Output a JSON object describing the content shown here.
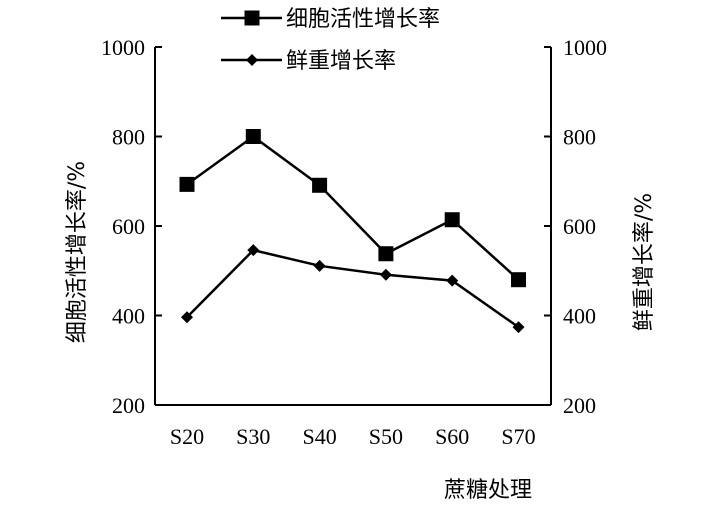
{
  "chart_data": {
    "type": "line",
    "categories": [
      "S20",
      "S30",
      "S40",
      "S50",
      "S60",
      "S70"
    ],
    "series": [
      {
        "name": "细胞活性增长率",
        "marker": "square",
        "values": [
          693,
          800,
          691,
          538,
          614,
          480
        ]
      },
      {
        "name": "鲜重增长率",
        "marker": "diamond",
        "values": [
          396,
          546,
          511,
          491,
          478,
          374
        ]
      }
    ],
    "xlabel": "蔗糖处理",
    "ylabel_left": "细胞活性增长率/%",
    "ylabel_right": "鲜重增长率/%",
    "ylim": [
      200,
      1000
    ],
    "yticks": [
      200,
      400,
      600,
      800,
      1000
    ],
    "grid": false,
    "legend_position": "top-center",
    "line_color": "#000000"
  }
}
